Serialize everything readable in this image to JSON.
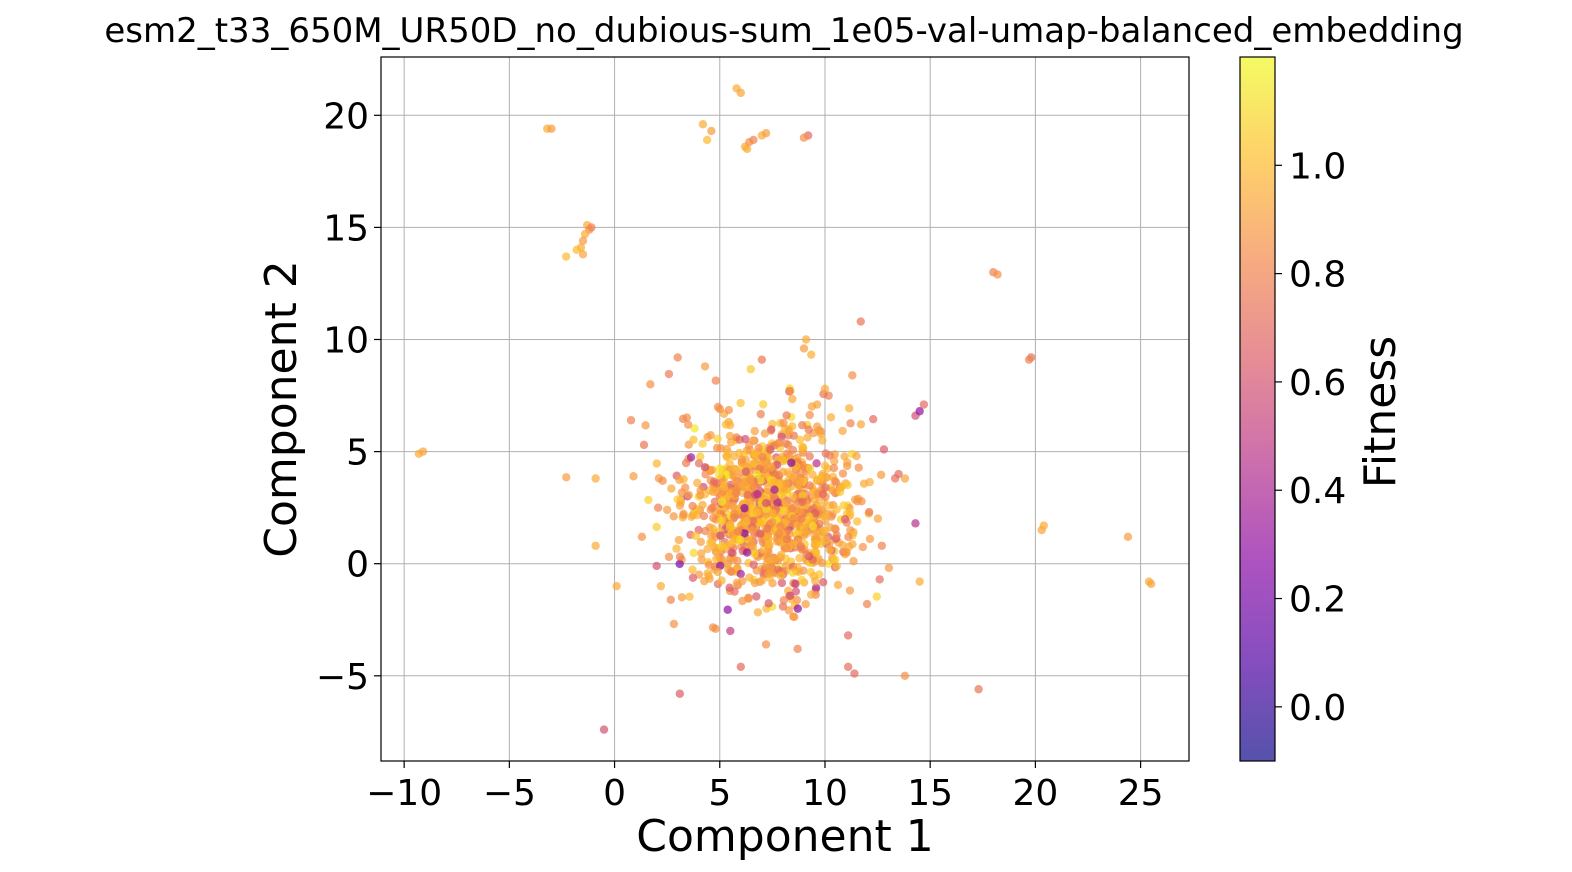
{
  "chart_data": {
    "type": "scatter",
    "title": "esm2_t33_650M_UR50D_no_dubious-sum_1e05-val-umap-balanced_embedding",
    "xlabel": "Component 1",
    "ylabel": "Component 2",
    "xlim": [
      -11.1,
      27.3
    ],
    "ylim": [
      -8.8,
      22.6
    ],
    "xticks": [
      -10,
      -5,
      0,
      5,
      10,
      15,
      20,
      25
    ],
    "xtick_labels": [
      "−10",
      "−5",
      "0",
      "5",
      "10",
      "15",
      "20",
      "25"
    ],
    "yticks": [
      -5,
      0,
      5,
      10,
      15,
      20
    ],
    "ytick_labels": [
      "−5",
      "0",
      "5",
      "10",
      "15",
      "20"
    ],
    "grid": true,
    "colorbar": {
      "label": "Fitness",
      "range": [
        -0.1,
        1.2
      ],
      "ticks": [
        0.0,
        0.2,
        0.4,
        0.6,
        0.8,
        1.0
      ],
      "tick_labels": [
        "0.0",
        "0.2",
        "0.4",
        "0.6",
        "0.8",
        "1.0"
      ],
      "colormap": "plasma",
      "colormap_stops": [
        "#0d0887",
        "#5302a3",
        "#8b0aa5",
        "#b83289",
        "#db5c68",
        "#f48849",
        "#febd2a",
        "#f0f921"
      ],
      "alpha": 0.7
    },
    "points": [
      {
        "x": -3.2,
        "y": 19.4,
        "c": 0.95
      },
      {
        "x": -3.0,
        "y": 19.4,
        "c": 0.9
      },
      {
        "x": -9.3,
        "y": 4.9,
        "c": 0.95
      },
      {
        "x": -9.1,
        "y": 5.0,
        "c": 0.92
      },
      {
        "x": -1.3,
        "y": 15.1,
        "c": 0.95
      },
      {
        "x": -1.2,
        "y": 14.9,
        "c": 0.85
      },
      {
        "x": -1.1,
        "y": 15.0,
        "c": 0.8
      },
      {
        "x": -1.4,
        "y": 14.7,
        "c": 0.95
      },
      {
        "x": -1.5,
        "y": 14.4,
        "c": 0.9
      },
      {
        "x": -1.6,
        "y": 14.1,
        "c": 0.95
      },
      {
        "x": -1.8,
        "y": 14.0,
        "c": 1.0
      },
      {
        "x": -1.5,
        "y": 13.8,
        "c": 0.92
      },
      {
        "x": -2.3,
        "y": 13.7,
        "c": 1.0
      },
      {
        "x": 4.2,
        "y": 19.6,
        "c": 0.95
      },
      {
        "x": 4.6,
        "y": 19.3,
        "c": 0.9
      },
      {
        "x": 4.4,
        "y": 18.9,
        "c": 1.0
      },
      {
        "x": 5.8,
        "y": 21.2,
        "c": 0.95
      },
      {
        "x": 6.0,
        "y": 21.0,
        "c": 0.92
      },
      {
        "x": 6.2,
        "y": 18.6,
        "c": 0.95
      },
      {
        "x": 6.4,
        "y": 18.8,
        "c": 0.85
      },
      {
        "x": 6.6,
        "y": 18.9,
        "c": 0.8
      },
      {
        "x": 6.3,
        "y": 18.5,
        "c": 0.95
      },
      {
        "x": 7.0,
        "y": 19.1,
        "c": 0.95
      },
      {
        "x": 7.2,
        "y": 19.2,
        "c": 0.9
      },
      {
        "x": 9.2,
        "y": 19.1,
        "c": 0.7
      },
      {
        "x": 9.0,
        "y": 19.0,
        "c": 0.85
      },
      {
        "x": 18.0,
        "y": 13.0,
        "c": 0.8
      },
      {
        "x": 18.2,
        "y": 12.9,
        "c": 0.85
      },
      {
        "x": 11.7,
        "y": 10.8,
        "c": 0.75
      },
      {
        "x": 19.8,
        "y": 9.2,
        "c": 0.72
      },
      {
        "x": 19.7,
        "y": 9.1,
        "c": 0.8
      },
      {
        "x": 14.3,
        "y": 6.6,
        "c": 0.6
      },
      {
        "x": 14.5,
        "y": 6.8,
        "c": 0.3
      },
      {
        "x": 14.7,
        "y": 7.1,
        "c": 0.7
      },
      {
        "x": 20.3,
        "y": 1.5,
        "c": 0.92
      },
      {
        "x": 20.4,
        "y": 1.7,
        "c": 0.95
      },
      {
        "x": 24.4,
        "y": 1.2,
        "c": 0.9
      },
      {
        "x": 25.4,
        "y": -0.8,
        "c": 0.95
      },
      {
        "x": 25.5,
        "y": -0.9,
        "c": 0.92
      },
      {
        "x": 17.3,
        "y": -5.6,
        "c": 0.75
      },
      {
        "x": 13.8,
        "y": -5.0,
        "c": 0.85
      },
      {
        "x": 14.3,
        "y": 1.8,
        "c": 0.45
      },
      {
        "x": 14.5,
        "y": -0.8,
        "c": 0.95
      },
      {
        "x": 13.8,
        "y": 3.8,
        "c": 0.92
      },
      {
        "x": 13.5,
        "y": 4.0,
        "c": 0.7
      },
      {
        "x": 3.1,
        "y": -5.8,
        "c": 0.65
      },
      {
        "x": -0.5,
        "y": -7.4,
        "c": 0.6
      },
      {
        "x": -0.9,
        "y": 0.8,
        "c": 0.95
      },
      {
        "x": -0.9,
        "y": 3.8,
        "c": 0.95
      },
      {
        "x": 0.1,
        "y": -1.0,
        "c": 0.95
      },
      {
        "x": 3.0,
        "y": 9.2,
        "c": 0.8
      },
      {
        "x": 4.3,
        "y": 8.8,
        "c": 0.9
      },
      {
        "x": 1.7,
        "y": 8.0,
        "c": 0.85
      },
      {
        "x": 7.0,
        "y": 9.1,
        "c": 0.75
      },
      {
        "x": 9.1,
        "y": 10.0,
        "c": 0.95
      },
      {
        "x": 9.0,
        "y": 9.6,
        "c": 0.9
      },
      {
        "x": 6.0,
        "y": -4.6,
        "c": 0.7
      },
      {
        "x": 11.1,
        "y": -4.6,
        "c": 0.72
      },
      {
        "x": 11.4,
        "y": -4.9,
        "c": 0.7
      },
      {
        "x": 8.7,
        "y": -3.8,
        "c": 0.8
      },
      {
        "x": 7.2,
        "y": -3.6,
        "c": 0.85
      },
      {
        "x": 5.5,
        "y": -3.0,
        "c": 0.5
      },
      {
        "x": 4.8,
        "y": -2.9,
        "c": 0.85
      },
      {
        "x": 11.1,
        "y": -3.2,
        "c": 0.7
      },
      {
        "x": 12.0,
        "y": -1.8,
        "c": 0.8
      },
      {
        "x": 2.2,
        "y": -1.0,
        "c": 0.95
      },
      {
        "x": 3.2,
        "y": -1.5,
        "c": 0.9
      },
      {
        "x": 2.0,
        "y": -0.1,
        "c": 0.6
      },
      {
        "x": 1.3,
        "y": 1.2,
        "c": 0.85
      },
      {
        "x": 0.9,
        "y": 3.9,
        "c": 0.9
      },
      {
        "x": 1.4,
        "y": 5.3,
        "c": 0.75
      },
      {
        "x": 3.5,
        "y": 6.2,
        "c": 0.85
      },
      {
        "x": 11.3,
        "y": 8.4,
        "c": 0.85
      },
      {
        "x": 10.0,
        "y": 7.8,
        "c": 0.95
      },
      {
        "x": 12.1,
        "y": 2.3,
        "c": 0.75
      },
      {
        "x": 11.5,
        "y": 4.8,
        "c": 0.92
      },
      {
        "x": 12.7,
        "y": 0.8,
        "c": 0.8
      },
      {
        "x": 12.6,
        "y": -0.7,
        "c": 0.72
      },
      {
        "x": 7.6,
        "y": 3.3,
        "c": 0.35
      },
      {
        "x": 8.4,
        "y": 4.5,
        "c": 0.25
      },
      {
        "x": 6.3,
        "y": 0.5,
        "c": 0.3
      },
      {
        "x": 6.8,
        "y": 3.1,
        "c": 0.45
      },
      {
        "x": 8.6,
        "y": -0.9,
        "c": 0.5
      },
      {
        "x": 4.3,
        "y": 4.3,
        "c": 0.55
      },
      {
        "x": 5.0,
        "y": 6.9,
        "c": 0.85
      },
      {
        "x": 9.9,
        "y": 3.1,
        "c": 0.7
      },
      {
        "x": 2.5,
        "y": 2.4,
        "c": 0.9
      }
    ],
    "cluster": {
      "center": [
        7.3,
        2.4
      ],
      "spread": [
        2.0,
        1.9
      ],
      "count": 1100,
      "seed": 7
    }
  }
}
